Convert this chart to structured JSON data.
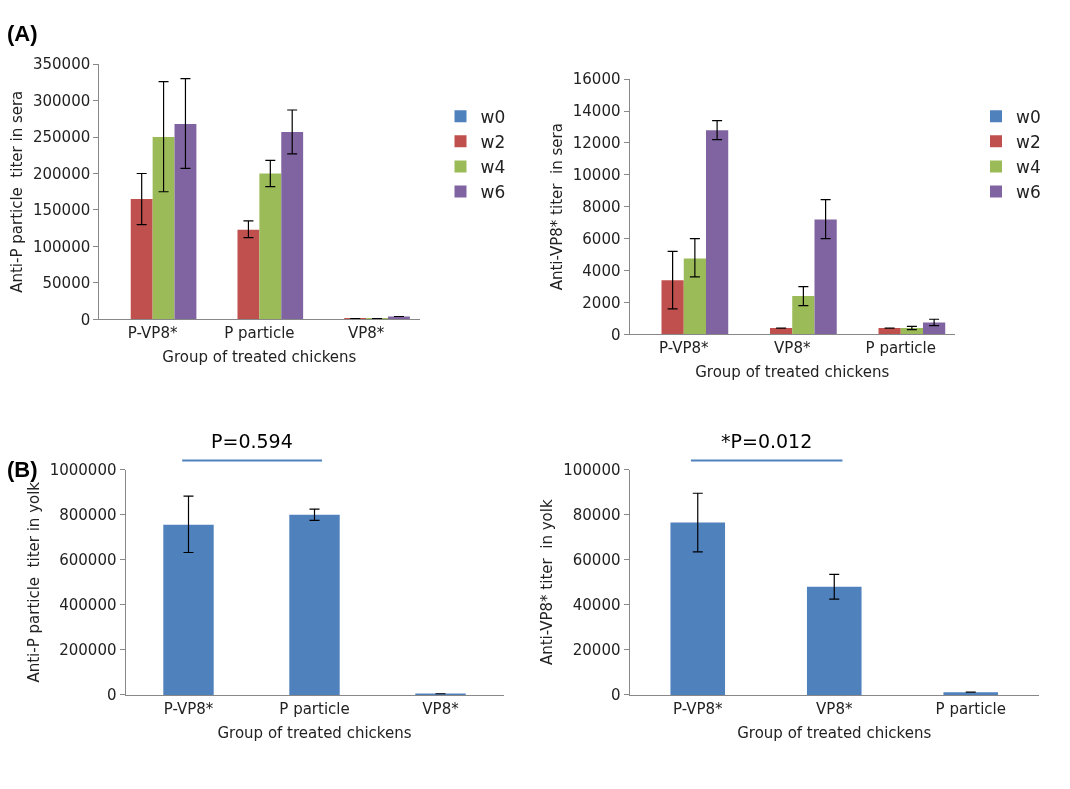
{
  "chart_data": [
    {
      "type": "bar",
      "xlabel": "Group of treated chickens",
      "ylabel": "Anti-P particle  titer in sera",
      "categories": [
        "P-VP8*",
        "P particle",
        "VP8*"
      ],
      "ylim": [
        0,
        350000
      ],
      "yticks": [
        0,
        50000,
        100000,
        150000,
        200000,
        250000,
        300000,
        350000
      ],
      "legend": "right",
      "annotations": [
        "(A)"
      ],
      "series": [
        {
          "name": "w0",
          "color": "#4f81bd",
          "values": [
            0,
            0,
            0
          ]
        },
        {
          "name": "w2",
          "color": "#c0504d",
          "values": [
            165000,
            123000,
            1000
          ],
          "errors": [
            [
              130000,
              200000
            ],
            [
              112000,
              135000
            ],
            null
          ]
        },
        {
          "name": "w4",
          "color": "#9bbb59",
          "values": [
            250000,
            200000,
            1000
          ],
          "errors": [
            [
              175000,
              326000
            ],
            [
              182000,
              218000
            ],
            null
          ]
        },
        {
          "name": "w6",
          "color": "#8064a2",
          "values": [
            268000,
            257000,
            4000
          ],
          "errors": [
            [
              207000,
              330000
            ],
            [
              227000,
              287000
            ],
            null
          ]
        }
      ]
    },
    {
      "type": "bar",
      "xlabel": "Group of treated chickens",
      "ylabel": "Anti-VP8* titer  in sera",
      "categories": [
        "P-VP8*",
        "VP8*",
        "P particle"
      ],
      "ylim": [
        0,
        16000
      ],
      "yticks": [
        0,
        2000,
        4000,
        6000,
        8000,
        10000,
        12000,
        14000,
        16000
      ],
      "legend": "right",
      "series": [
        {
          "name": "w0",
          "color": "#4f81bd",
          "values": [
            0,
            0,
            0
          ]
        },
        {
          "name": "w2",
          "color": "#c0504d",
          "values": [
            3400,
            400,
            400
          ],
          "errors": [
            [
              1600,
              5200
            ],
            null,
            null
          ]
        },
        {
          "name": "w4",
          "color": "#9bbb59",
          "values": [
            4750,
            2400,
            400
          ],
          "errors": [
            [
              3600,
              6000
            ],
            [
              1800,
              3000
            ],
            [
              300,
              500
            ]
          ]
        },
        {
          "name": "w6",
          "color": "#8064a2",
          "values": [
            12800,
            7200,
            750
          ],
          "errors": [
            [
              12200,
              13400
            ],
            [
              6000,
              8450
            ],
            [
              550,
              950
            ]
          ]
        }
      ]
    },
    {
      "type": "bar",
      "xlabel": "Group of treated chickens",
      "ylabel": "Anti-P particle  titer in yolk",
      "categories": [
        "P-VP8*",
        "P particle",
        "VP8*"
      ],
      "ylim": [
        0,
        1000000
      ],
      "yticks": [
        0,
        200000,
        400000,
        600000,
        800000,
        1000000
      ],
      "legend": false,
      "annotations": [
        "(B)",
        "P=0.594"
      ],
      "series": [
        {
          "color": "#4f81bd",
          "values": [
            755000,
            800000,
            5000
          ],
          "errors": [
            [
              632000,
              882000
            ],
            [
              775000,
              825000
            ],
            null
          ]
        }
      ]
    },
    {
      "type": "bar",
      "xlabel": "Group of treated chickens",
      "ylabel": "Anti-VP8* titer  in yolk",
      "categories": [
        "P-VP8*",
        "VP8*",
        "P particle"
      ],
      "ylim": [
        0,
        100000
      ],
      "yticks": [
        0,
        20000,
        40000,
        60000,
        80000,
        100000
      ],
      "legend": false,
      "annotations": [
        "*P=0.012"
      ],
      "series": [
        {
          "color": "#4f81bd",
          "values": [
            76500,
            48000,
            1200
          ],
          "errors": [
            [
              63500,
              89500
            ],
            [
              42500,
              53500
            ],
            null
          ]
        }
      ]
    }
  ]
}
